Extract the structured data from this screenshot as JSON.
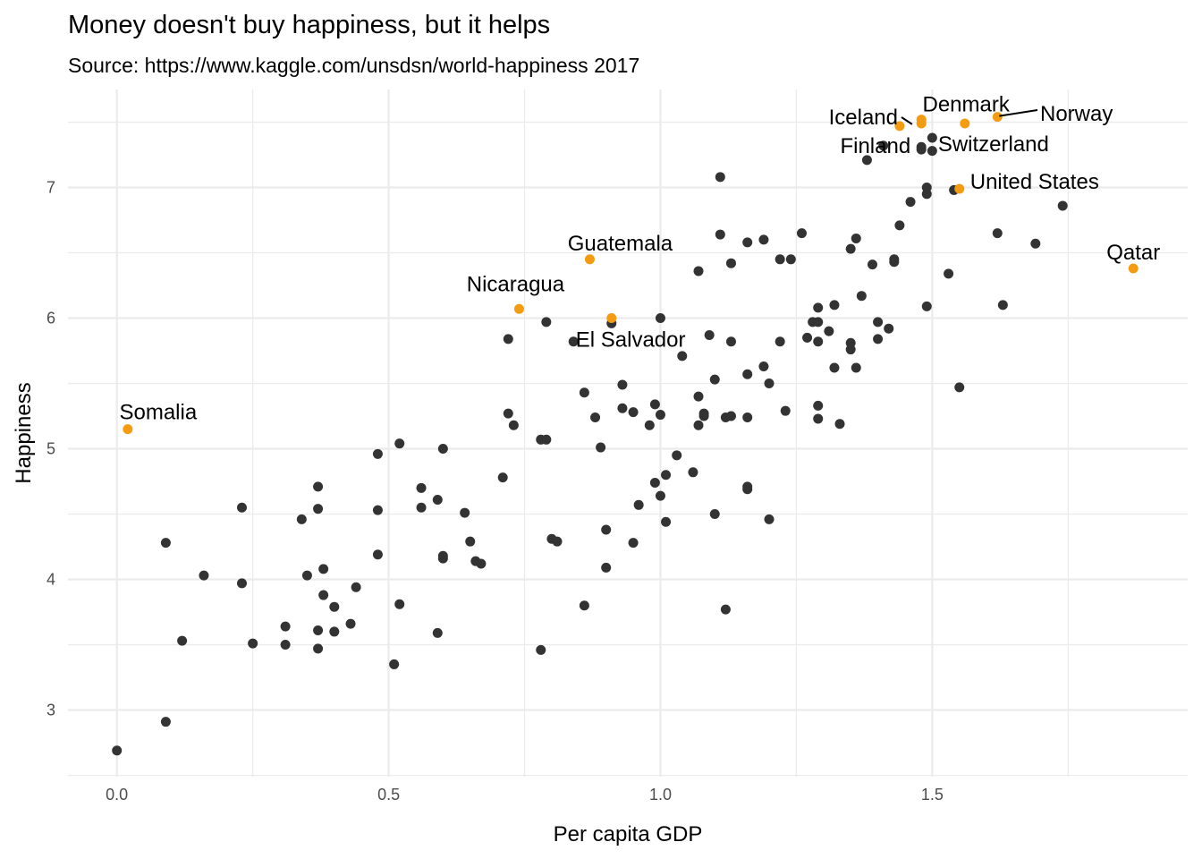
{
  "chart_data": {
    "type": "scatter",
    "title": "Money doesn't buy happiness, but it helps",
    "subtitle": "Source: https://www.kaggle.com/unsdsn/world-happiness 2017",
    "xlabel": "Per capita GDP",
    "ylabel": "Happiness",
    "xlim": [
      -0.09,
      1.97
    ],
    "ylim": [
      2.49,
      7.75
    ],
    "xticks": [
      0.0,
      0.5,
      1.0,
      1.5
    ],
    "xtick_labels": [
      "0.0",
      "0.5",
      "1.0",
      "1.5"
    ],
    "yticks": [
      3,
      4,
      5,
      6,
      7
    ],
    "ytick_labels": [
      "3",
      "4",
      "5",
      "6",
      "7"
    ],
    "grid": true,
    "colors": {
      "point": "#333333",
      "highlight": "#f39c12",
      "grid": "#ebebeb"
    },
    "points": [
      [
        0.0,
        2.69
      ],
      [
        0.09,
        2.91
      ],
      [
        0.09,
        4.28
      ],
      [
        0.12,
        3.53
      ],
      [
        0.16,
        4.03
      ],
      [
        0.23,
        4.55
      ],
      [
        0.23,
        3.97
      ],
      [
        0.25,
        3.51
      ],
      [
        0.31,
        3.64
      ],
      [
        0.31,
        3.5
      ],
      [
        0.34,
        4.46
      ],
      [
        0.35,
        4.03
      ],
      [
        0.37,
        4.71
      ],
      [
        0.37,
        4.54
      ],
      [
        0.37,
        3.61
      ],
      [
        0.37,
        3.47
      ],
      [
        0.38,
        3.88
      ],
      [
        0.38,
        4.08
      ],
      [
        0.4,
        3.6
      ],
      [
        0.4,
        3.79
      ],
      [
        0.43,
        3.66
      ],
      [
        0.44,
        3.94
      ],
      [
        0.48,
        4.19
      ],
      [
        0.48,
        4.96
      ],
      [
        0.48,
        4.53
      ],
      [
        0.51,
        3.35
      ],
      [
        0.52,
        3.81
      ],
      [
        0.52,
        5.04
      ],
      [
        0.56,
        4.55
      ],
      [
        0.56,
        4.7
      ],
      [
        0.59,
        4.61
      ],
      [
        0.59,
        3.59
      ],
      [
        0.6,
        5.0
      ],
      [
        0.6,
        4.18
      ],
      [
        0.6,
        4.16
      ],
      [
        0.64,
        4.51
      ],
      [
        0.65,
        4.29
      ],
      [
        0.66,
        4.14
      ],
      [
        0.67,
        4.12
      ],
      [
        0.71,
        4.78
      ],
      [
        0.72,
        5.27
      ],
      [
        0.73,
        5.18
      ],
      [
        0.72,
        5.84
      ],
      [
        0.78,
        3.46
      ],
      [
        0.78,
        5.07
      ],
      [
        0.79,
        5.07
      ],
      [
        0.79,
        5.97
      ],
      [
        0.8,
        4.31
      ],
      [
        0.81,
        4.29
      ],
      [
        0.84,
        5.82
      ],
      [
        0.86,
        3.8
      ],
      [
        0.86,
        5.43
      ],
      [
        0.88,
        5.24
      ],
      [
        0.89,
        5.01
      ],
      [
        0.9,
        4.09
      ],
      [
        0.9,
        4.38
      ],
      [
        0.91,
        5.96
      ],
      [
        0.93,
        5.31
      ],
      [
        0.93,
        5.49
      ],
      [
        0.95,
        5.28
      ],
      [
        0.95,
        4.28
      ],
      [
        0.96,
        4.57
      ],
      [
        0.98,
        5.18
      ],
      [
        0.99,
        5.34
      ],
      [
        0.99,
        4.74
      ],
      [
        1.0,
        5.26
      ],
      [
        1.0,
        4.64
      ],
      [
        1.0,
        6.0
      ],
      [
        1.01,
        4.8
      ],
      [
        1.01,
        4.44
      ],
      [
        1.03,
        4.95
      ],
      [
        1.04,
        5.71
      ],
      [
        1.06,
        4.82
      ],
      [
        1.07,
        5.18
      ],
      [
        1.07,
        5.4
      ],
      [
        1.08,
        5.25
      ],
      [
        1.08,
        5.27
      ],
      [
        1.07,
        6.36
      ],
      [
        1.09,
        5.87
      ],
      [
        1.1,
        5.53
      ],
      [
        1.1,
        4.5
      ],
      [
        1.11,
        6.64
      ],
      [
        1.11,
        7.08
      ],
      [
        1.12,
        3.77
      ],
      [
        1.12,
        5.24
      ],
      [
        1.13,
        5.25
      ],
      [
        1.13,
        6.42
      ],
      [
        1.13,
        5.82
      ],
      [
        1.16,
        5.24
      ],
      [
        1.16,
        5.57
      ],
      [
        1.16,
        4.69
      ],
      [
        1.16,
        4.71
      ],
      [
        1.16,
        6.58
      ],
      [
        1.19,
        6.6
      ],
      [
        1.19,
        5.63
      ],
      [
        1.2,
        5.5
      ],
      [
        1.2,
        4.46
      ],
      [
        1.22,
        5.82
      ],
      [
        1.22,
        6.45
      ],
      [
        1.23,
        5.29
      ],
      [
        1.24,
        6.45
      ],
      [
        1.26,
        6.65
      ],
      [
        1.27,
        5.85
      ],
      [
        1.28,
        5.97
      ],
      [
        1.29,
        5.82
      ],
      [
        1.29,
        5.33
      ],
      [
        1.29,
        5.23
      ],
      [
        1.29,
        6.08
      ],
      [
        1.29,
        5.97
      ],
      [
        1.31,
        5.9
      ],
      [
        1.32,
        5.62
      ],
      [
        1.32,
        6.1
      ],
      [
        1.33,
        5.19
      ],
      [
        1.35,
        5.76
      ],
      [
        1.35,
        5.81
      ],
      [
        1.35,
        6.53
      ],
      [
        1.36,
        6.61
      ],
      [
        1.36,
        5.62
      ],
      [
        1.37,
        6.17
      ],
      [
        1.38,
        7.21
      ],
      [
        1.39,
        6.41
      ],
      [
        1.4,
        5.97
      ],
      [
        1.4,
        5.84
      ],
      [
        1.41,
        7.32
      ],
      [
        1.42,
        5.92
      ],
      [
        1.43,
        6.45
      ],
      [
        1.43,
        6.43
      ],
      [
        1.44,
        6.71
      ],
      [
        1.46,
        6.89
      ],
      [
        1.48,
        7.31
      ],
      [
        1.48,
        7.29
      ],
      [
        1.49,
        7.0
      ],
      [
        1.49,
        6.95
      ],
      [
        1.49,
        6.09
      ],
      [
        1.5,
        7.28
      ],
      [
        1.5,
        7.38
      ],
      [
        1.53,
        6.34
      ],
      [
        1.54,
        6.98
      ],
      [
        1.55,
        5.47
      ],
      [
        1.62,
        6.65
      ],
      [
        1.63,
        6.1
      ],
      [
        1.69,
        6.57
      ],
      [
        1.74,
        6.86
      ]
    ],
    "labeled": [
      {
        "name": "Somalia",
        "x": 0.02,
        "y": 5.15
      },
      {
        "name": "Nicaragua",
        "x": 0.74,
        "y": 6.07
      },
      {
        "name": "Guatemala",
        "x": 0.87,
        "y": 6.45
      },
      {
        "name": "El Salvador",
        "x": 0.91,
        "y": 6.0
      },
      {
        "name": "Iceland",
        "x": 1.44,
        "y": 7.47
      },
      {
        "name": "Denmark",
        "x": 1.48,
        "y": 7.52
      },
      {
        "name": "Finland",
        "x": 1.48,
        "y": 7.49
      },
      {
        "name": "Switzerland",
        "x": 1.56,
        "y": 7.49
      },
      {
        "name": "Norway",
        "x": 1.62,
        "y": 7.54
      },
      {
        "name": "United States",
        "x": 1.55,
        "y": 6.99
      },
      {
        "name": "Qatar",
        "x": 1.87,
        "y": 6.38
      }
    ]
  }
}
